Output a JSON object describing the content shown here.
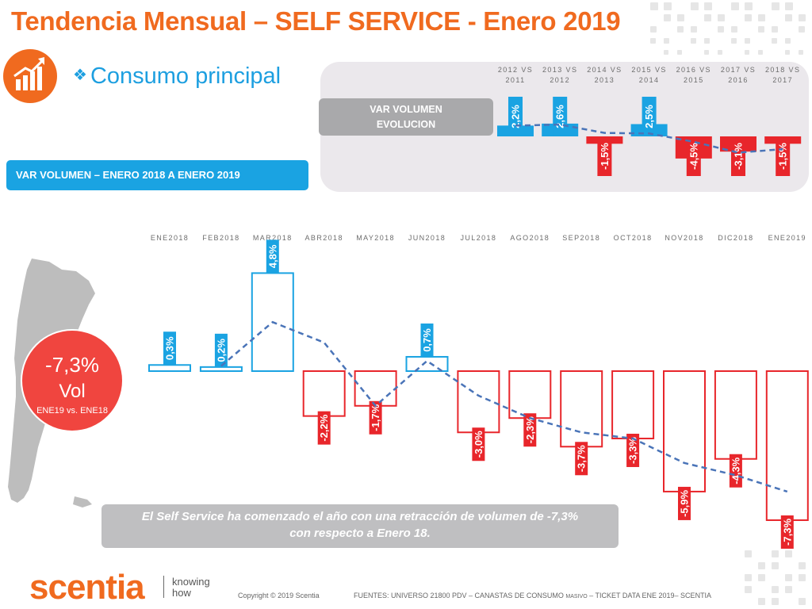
{
  "header": {
    "title": "Tendencia Mensual –  SELF SERVICE - Enero 2019"
  },
  "subtitle": {
    "bullet": "❖",
    "text": "Consumo principal"
  },
  "banner": {
    "text": "VAR VOLUMEN – ENERO 2018 A ENERO 2019"
  },
  "evolucion_label": {
    "line1": "VAR VOLUMEN",
    "line2": "EVOLUCION"
  },
  "vol_badge": {
    "value": "-7,3%",
    "unit": "Vol",
    "note": "ENE19 vs. ENE18"
  },
  "summary": {
    "line1": "El Self Service ha comenzado el año con una retracción de volumen de -7,3%",
    "line2": "con respecto a  Enero 18."
  },
  "footer": {
    "logo": "scentia",
    "tagline1": "knowing",
    "tagline2": "how",
    "copyright": "Copyright © 2019 Scentia",
    "sources_a": "FUENTES: UNIVERSO 21800 PDV – CANASTAS DE CONSUMO",
    "sources_small": "MASIVO",
    "sources_b": "– TICKET DATA ENE 2019– SCENTIA"
  },
  "colors": {
    "orange": "#f06a1f",
    "positive": "#1aa3e2",
    "negative": "#e8262b",
    "trend": "#4a74b8",
    "grey": "#bfbfc1"
  },
  "chart_data": [
    {
      "type": "bar",
      "categories": [
        "ENE2018",
        "FEB2018",
        "MAR2018",
        "ABR2018",
        "MAY2018",
        "JUN2018",
        "JUL2018",
        "AGO2018",
        "SEP2018",
        "OCT2018",
        "NOV2018",
        "DIC2018",
        "ENE2019"
      ],
      "values": [
        0.3,
        0.2,
        4.8,
        -2.2,
        -1.7,
        0.7,
        -3.0,
        -2.3,
        -3.7,
        -3.3,
        -5.9,
        -4.3,
        -7.3
      ],
      "labels": [
        "0,3%",
        "0,2%",
        "4,8%",
        "-2,2%",
        "-1,7%",
        "0,7%",
        "-3,0%",
        "-2,3%",
        "-3,7%",
        "-3,3%",
        "-5,9%",
        "-4,3%",
        "-7,3%"
      ],
      "trend": [
        null,
        0.25,
        2.4,
        1.4,
        -1.7,
        0.5,
        -1.2,
        -2.3,
        -3.0,
        -3.3,
        -4.5,
        -5.1,
        -5.9
      ],
      "legend": "none",
      "grid": false
    },
    {
      "type": "bar",
      "categories": [
        [
          "2012 VS",
          "2011"
        ],
        [
          "2013 VS",
          "2012"
        ],
        [
          "2014 VS",
          "2013"
        ],
        [
          "2015 VS",
          "2014"
        ],
        [
          "2016 VS",
          "2015"
        ],
        [
          "2017 VS",
          "2016"
        ],
        [
          "2018 VS",
          "2017"
        ]
      ],
      "values": [
        2.2,
        2.6,
        -1.5,
        2.5,
        -4.5,
        -3.1,
        -1.5
      ],
      "labels": [
        "2,2%",
        "2,6%",
        "-1,5%",
        "2,5%",
        "-4,5%",
        "-3,1%",
        "-1,5%"
      ],
      "trend": [
        2.2,
        2.4,
        0.7,
        0.6,
        -1.1,
        -3.3,
        -2.6
      ],
      "legend": "none",
      "grid": false
    }
  ]
}
